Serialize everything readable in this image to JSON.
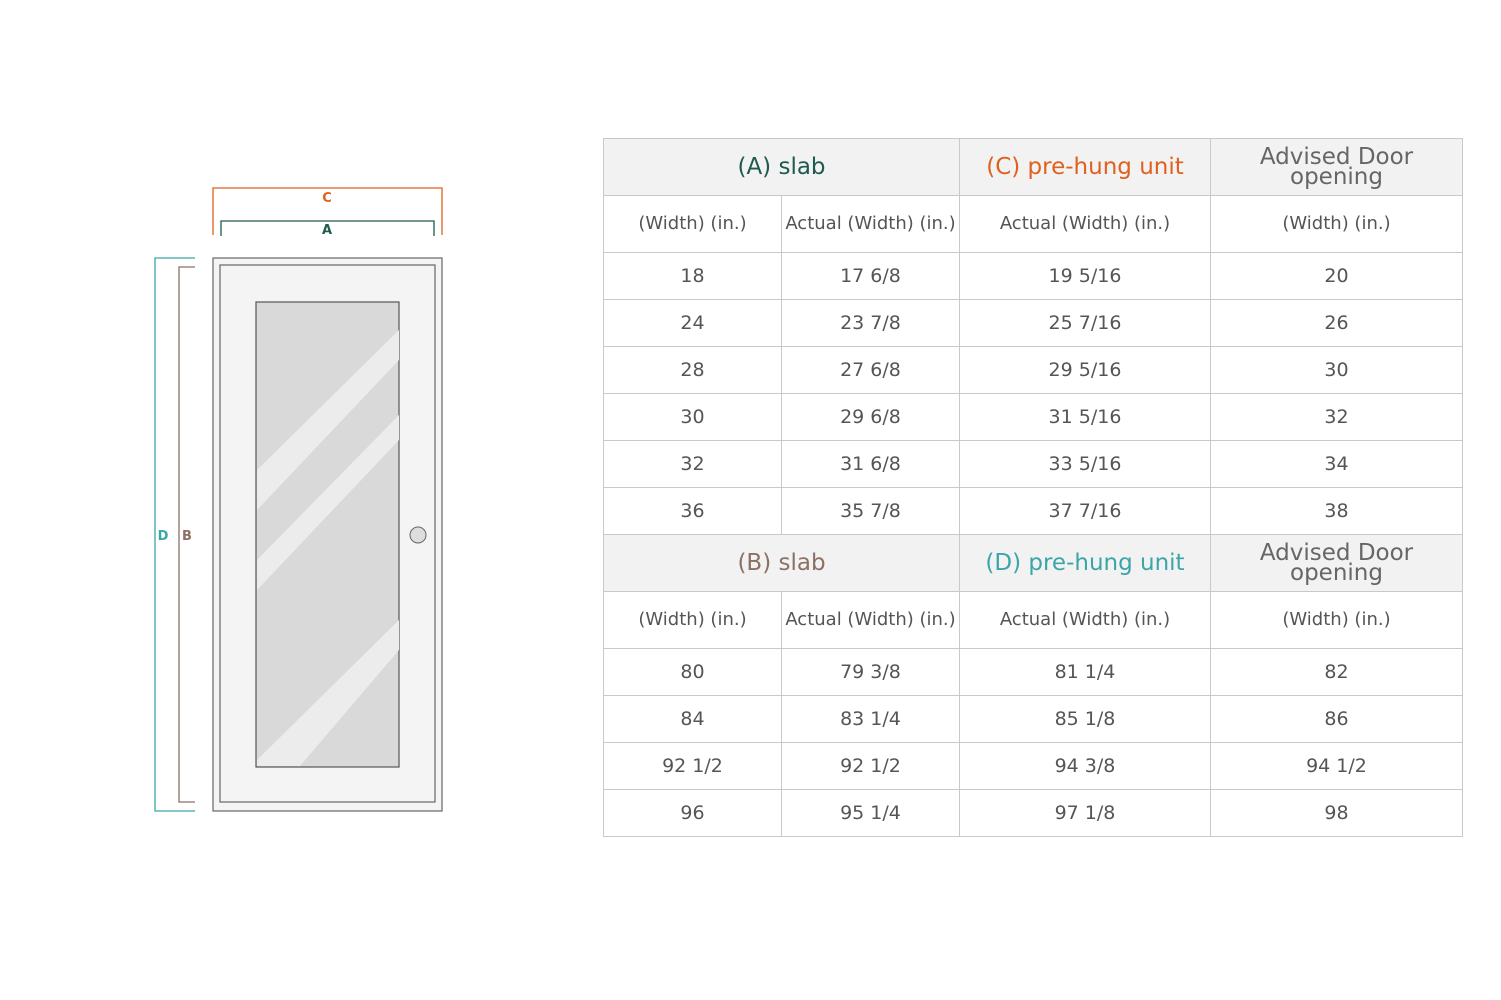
{
  "diagram": {
    "labels": {
      "c": "C",
      "a": "A",
      "d": "D",
      "b": "B"
    },
    "colors": {
      "a": "#1e5a4e",
      "c": "#e0601e",
      "b": "#8b7163",
      "d": "#3aa6a8"
    }
  },
  "table1": {
    "headers": [
      "(A) slab",
      "(C) pre-hung unit",
      "Advised Door opening"
    ],
    "subheaders": [
      "(Width) (in.)",
      "Actual (Width) (in.)",
      "Actual (Width) (in.)",
      "(Width) (in.)"
    ],
    "rows": [
      [
        "18",
        "17 6/8",
        "19 5/16",
        "20"
      ],
      [
        "24",
        "23 7/8",
        "25 7/16",
        "26"
      ],
      [
        "28",
        "27 6/8",
        "29 5/16",
        "30"
      ],
      [
        "30",
        "29 6/8",
        "31 5/16",
        "32"
      ],
      [
        "32",
        "31 6/8",
        "33 5/16",
        "34"
      ],
      [
        "36",
        "35 7/8",
        "37 7/16",
        "38"
      ]
    ]
  },
  "table2": {
    "headers": [
      "(B) slab",
      "(D) pre-hung unit",
      "Advised Door opening"
    ],
    "subheaders": [
      "(Width) (in.)",
      "Actual (Width) (in.)",
      "Actual (Width) (in.)",
      "(Width) (in.)"
    ],
    "rows": [
      [
        "80",
        "79 3/8",
        "81 1/4",
        "82"
      ],
      [
        "84",
        "83 1/4",
        "85 1/8",
        "86"
      ],
      [
        "92 1/2",
        "92 1/2",
        "94 3/8",
        "94 1/2"
      ],
      [
        "96",
        "95 1/4",
        "97 1/8",
        "98"
      ]
    ]
  }
}
